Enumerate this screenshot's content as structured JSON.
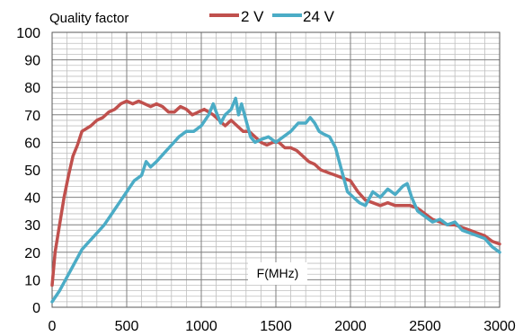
{
  "chart_data": {
    "type": "line",
    "ylabel_inline": "Quality factor",
    "xlabel_inline": "F(MHz)",
    "xlim": [
      0,
      3000
    ],
    "ylim": [
      0,
      100
    ],
    "x_ticks": [
      0,
      500,
      1000,
      1500,
      2000,
      2500,
      3000
    ],
    "y_ticks": [
      0,
      10,
      20,
      30,
      40,
      50,
      60,
      70,
      80,
      90,
      100
    ],
    "x_tick_labels": [
      "0",
      "500",
      "1000",
      "1500",
      "2000",
      "2500",
      "3000"
    ],
    "y_tick_labels": [
      "0",
      "10",
      "20",
      "30",
      "40",
      "50",
      "60",
      "70",
      "80",
      "90",
      "100"
    ],
    "grid": true,
    "legend_position": "top",
    "series": [
      {
        "name": "2 V",
        "color": "#c0504d",
        "x": [
          0,
          20,
          50,
          80,
          110,
          140,
          170,
          200,
          230,
          260,
          300,
          340,
          380,
          420,
          460,
          500,
          540,
          580,
          620,
          660,
          700,
          740,
          780,
          820,
          860,
          900,
          940,
          980,
          1020,
          1050,
          1080,
          1120,
          1160,
          1200,
          1240,
          1280,
          1320,
          1360,
          1400,
          1440,
          1480,
          1520,
          1560,
          1600,
          1640,
          1680,
          1720,
          1760,
          1800,
          1850,
          1900,
          1950,
          2000,
          2050,
          2100,
          2150,
          2200,
          2250,
          2300,
          2350,
          2400,
          2450,
          2500,
          2550,
          2600,
          2650,
          2700,
          2750,
          2800,
          2850,
          2900,
          2950,
          3000
        ],
        "y": [
          8,
          20,
          30,
          40,
          48,
          55,
          59,
          64,
          65,
          66,
          68,
          69,
          71,
          72,
          74,
          75,
          74,
          75,
          74,
          73,
          74,
          73,
          71,
          71,
          73,
          72,
          70,
          71,
          72,
          71,
          70,
          68,
          66,
          68,
          66,
          64,
          64,
          62,
          60,
          59,
          60,
          60,
          58,
          58,
          57,
          55,
          53,
          52,
          50,
          49,
          48,
          47,
          46,
          42,
          39,
          38,
          37,
          38,
          37,
          37,
          37,
          36,
          34,
          32,
          31,
          30,
          30,
          29,
          28,
          27,
          26,
          24,
          23
        ]
      },
      {
        "name": "24 V",
        "color": "#4bacc6",
        "x": [
          0,
          50,
          100,
          150,
          200,
          250,
          300,
          350,
          400,
          450,
          500,
          550,
          600,
          630,
          660,
          700,
          750,
          800,
          850,
          900,
          950,
          1000,
          1050,
          1080,
          1100,
          1130,
          1160,
          1200,
          1230,
          1250,
          1270,
          1300,
          1330,
          1360,
          1400,
          1450,
          1500,
          1550,
          1600,
          1650,
          1700,
          1730,
          1760,
          1790,
          1820,
          1860,
          1900,
          1940,
          1980,
          2020,
          2060,
          2100,
          2150,
          2200,
          2250,
          2300,
          2350,
          2380,
          2410,
          2450,
          2500,
          2550,
          2600,
          2650,
          2700,
          2750,
          2800,
          2850,
          2900,
          2950,
          3000
        ],
        "y": [
          2,
          6,
          11,
          16,
          21,
          24,
          27,
          30,
          34,
          38,
          42,
          46,
          48,
          53,
          51,
          53,
          56,
          59,
          62,
          64,
          64,
          66,
          70,
          74,
          71,
          67,
          70,
          72,
          76,
          70,
          74,
          68,
          62,
          60,
          61,
          62,
          60,
          62,
          64,
          67,
          67,
          69,
          67,
          64,
          63,
          62,
          58,
          50,
          42,
          40,
          38,
          37,
          42,
          40,
          43,
          41,
          44,
          45,
          40,
          35,
          33,
          31,
          32,
          30,
          31,
          28,
          27,
          26,
          25,
          22,
          20
        ]
      }
    ]
  }
}
